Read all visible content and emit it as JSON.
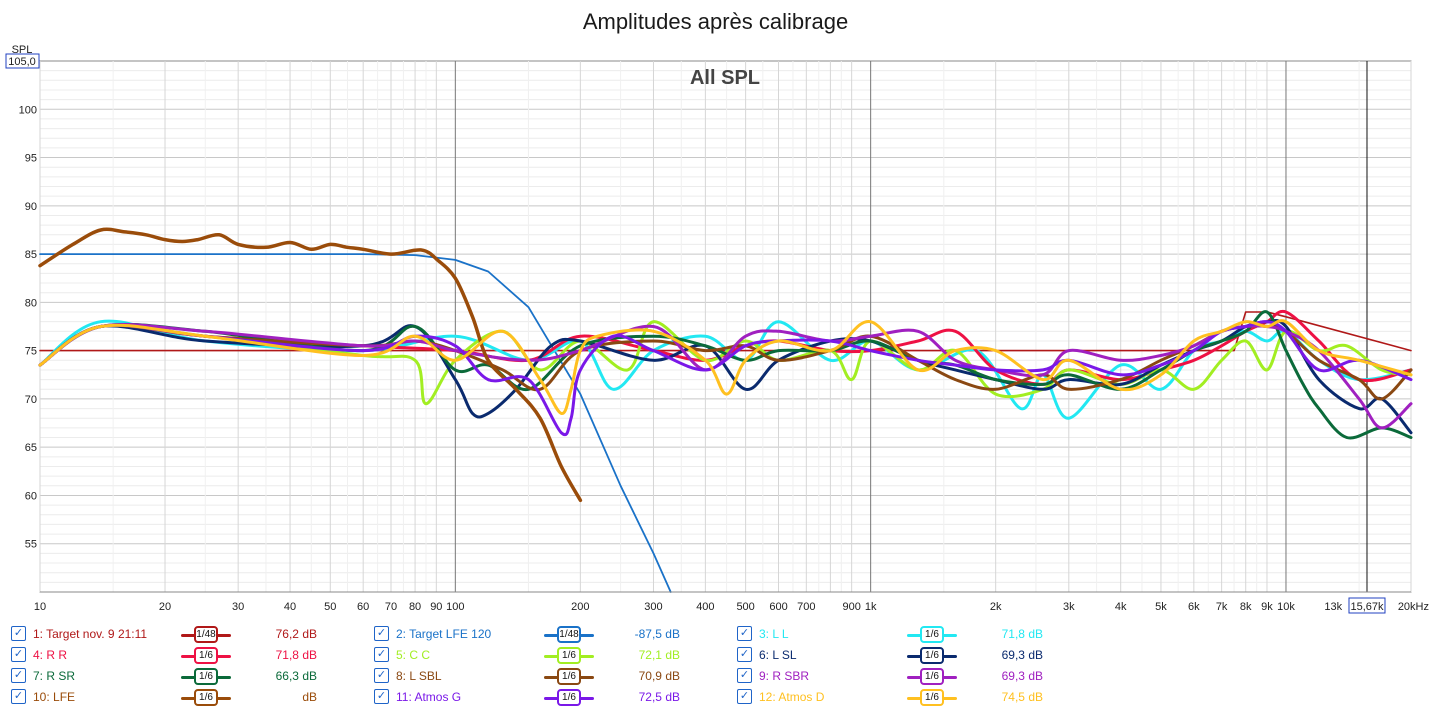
{
  "chart_data": {
    "type": "line",
    "title": "Amplitudes après calibrage",
    "annotation": "All SPL",
    "ylabel": "SPL",
    "ylim": [
      50,
      105
    ],
    "y_top_label": "105,0",
    "xlim_hz": [
      10,
      20000
    ],
    "x_scale": "log",
    "x_ticks": [
      {
        "hz": 10,
        "label": "10"
      },
      {
        "hz": 20,
        "label": "20"
      },
      {
        "hz": 30,
        "label": "30"
      },
      {
        "hz": 40,
        "label": "40"
      },
      {
        "hz": 50,
        "label": "50"
      },
      {
        "hz": 60,
        "label": "60"
      },
      {
        "hz": 70,
        "label": "70"
      },
      {
        "hz": 80,
        "label": "80"
      },
      {
        "hz": 90,
        "label": "90"
      },
      {
        "hz": 100,
        "label": "100"
      },
      {
        "hz": 200,
        "label": "200"
      },
      {
        "hz": 300,
        "label": "300"
      },
      {
        "hz": 400,
        "label": "400"
      },
      {
        "hz": 500,
        "label": "500"
      },
      {
        "hz": 600,
        "label": "600"
      },
      {
        "hz": 700,
        "label": "700"
      },
      {
        "hz": 900,
        "label": "900"
      },
      {
        "hz": 1000,
        "label": "1k"
      },
      {
        "hz": 2000,
        "label": "2k"
      },
      {
        "hz": 3000,
        "label": "3k"
      },
      {
        "hz": 4000,
        "label": "4k"
      },
      {
        "hz": 5000,
        "label": "5k"
      },
      {
        "hz": 6000,
        "label": "6k"
      },
      {
        "hz": 7000,
        "label": "7k"
      },
      {
        "hz": 8000,
        "label": "8k"
      },
      {
        "hz": 9000,
        "label": "9k"
      },
      {
        "hz": 10000,
        "label": "10k"
      },
      {
        "hz": 13000,
        "label": "13k"
      },
      {
        "hz": 20000,
        "label": "20kHz"
      }
    ],
    "y_ticks": [
      55,
      60,
      65,
      70,
      75,
      80,
      85,
      90,
      95,
      100
    ],
    "cursor": {
      "hz": 15670,
      "label": "15,67k"
    },
    "series": [
      {
        "name": "1: Target nov. 9 21:11",
        "color": "#b01818",
        "width": 1.6,
        "smoothing": "1/48",
        "legend_value": "76,2 dB",
        "x": [
          10,
          7500,
          8000,
          9000,
          10000,
          20000
        ],
        "y": [
          75,
          75,
          79,
          79,
          78.5,
          75
        ]
      },
      {
        "name": "2: Target LFE 120",
        "color": "#1a72c8",
        "width": 1.8,
        "smoothing": "1/48",
        "legend_value": "-87,5 dB",
        "x": [
          10,
          60,
          80,
          100,
          120,
          150,
          200,
          250,
          300,
          330
        ],
        "y": [
          85,
          85,
          84.9,
          84.4,
          83.2,
          79.5,
          70.5,
          61,
          54,
          50
        ]
      },
      {
        "name": "3: L L",
        "color": "#22e8f2",
        "width": 3,
        "smoothing": "1/6",
        "legend_value": "71,8 dB",
        "x": [
          10,
          14,
          25,
          60,
          100,
          150,
          200,
          240,
          300,
          400,
          500,
          600,
          800,
          1000,
          1300,
          1800,
          2300,
          2600,
          3000,
          4000,
          5000,
          6000,
          7000,
          8000,
          9000,
          10000,
          12000,
          15000,
          20000
        ],
        "y": [
          73.5,
          78,
          76,
          75,
          76.5,
          74,
          76,
          71,
          75,
          76.5,
          74,
          78,
          74,
          76,
          73,
          75,
          69,
          72.5,
          68,
          73.5,
          71,
          75,
          76,
          77,
          76,
          77,
          74,
          72,
          73
        ]
      },
      {
        "name": "4: R R",
        "color": "#ee1144",
        "width": 3,
        "smoothing": "1/6",
        "legend_value": "71,8 dB",
        "x": [
          10,
          14,
          25,
          60,
          100,
          150,
          200,
          300,
          400,
          500,
          600,
          800,
          1000,
          1300,
          1600,
          2000,
          2600,
          3000,
          4000,
          5000,
          6000,
          7000,
          8000,
          9000,
          10000,
          12000,
          15000,
          20000
        ],
        "y": [
          73.5,
          77.5,
          76.5,
          75.5,
          75,
          74,
          76.5,
          75,
          74,
          75.5,
          76,
          75,
          75,
          76,
          77,
          73,
          71.5,
          73,
          72,
          73,
          74,
          75.5,
          77,
          78,
          79,
          76,
          72,
          73
        ]
      },
      {
        "name": "5: C C",
        "color": "#a2ee22",
        "width": 3,
        "smoothing": "1/6",
        "legend_value": "72,1 dB",
        "x": [
          10,
          14,
          25,
          60,
          80,
          85,
          100,
          130,
          160,
          200,
          260,
          300,
          400,
          500,
          600,
          800,
          900,
          1000,
          1300,
          1600,
          2000,
          2600,
          3000,
          4000,
          5000,
          6000,
          7000,
          8000,
          9000,
          10000,
          12000,
          14000,
          17000,
          20000
        ],
        "y": [
          73.5,
          77.5,
          76.5,
          74.5,
          74,
          69.5,
          74,
          77,
          73,
          76,
          73,
          78,
          74,
          76,
          74,
          75,
          72,
          76,
          73,
          75,
          70.5,
          71,
          73,
          71.5,
          73,
          71,
          74,
          76,
          73,
          77,
          75,
          75.5,
          73,
          72.5
        ]
      },
      {
        "name": "6: L SL",
        "color": "#0a2a6e",
        "width": 3,
        "smoothing": "1/6",
        "legend_value": "69,3 dB",
        "x": [
          10,
          14,
          25,
          60,
          80,
          100,
          110,
          120,
          140,
          170,
          200,
          300,
          400,
          500,
          600,
          800,
          1000,
          1300,
          1600,
          2000,
          2600,
          3000,
          4000,
          5000,
          6000,
          7000,
          8000,
          9000,
          10000,
          12000,
          15000,
          17000,
          20000
        ],
        "y": [
          73.5,
          77.5,
          76,
          75.5,
          77.5,
          72,
          68.5,
          68.5,
          71,
          75.5,
          76,
          74,
          75.5,
          71,
          74,
          76,
          76,
          74,
          73,
          72,
          71,
          72,
          71.5,
          73.5,
          75,
          76,
          77.5,
          78,
          77.5,
          72,
          69,
          70,
          66.5
        ]
      },
      {
        "name": "7: R SR",
        "color": "#0b6a3a",
        "width": 3,
        "smoothing": "1/6",
        "legend_value": "66,3 dB",
        "x": [
          10,
          14,
          25,
          60,
          80,
          100,
          120,
          150,
          200,
          300,
          400,
          500,
          600,
          800,
          1000,
          1300,
          1600,
          2000,
          2600,
          3000,
          4000,
          5000,
          6000,
          7000,
          8000,
          9000,
          10000,
          11000,
          12000,
          14000,
          17000,
          20000
        ],
        "y": [
          73.5,
          77.5,
          77,
          75,
          77.5,
          73,
          73.5,
          71,
          75.5,
          76.5,
          75.5,
          74,
          75,
          75,
          76,
          74,
          73.5,
          72,
          71.5,
          72.5,
          71,
          73,
          75,
          76,
          77,
          79,
          75,
          71.5,
          69,
          66,
          67,
          66
        ]
      },
      {
        "name": "8: L SBL",
        "color": "#8a4812",
        "width": 3,
        "smoothing": "1/6",
        "legend_value": "70,9 dB",
        "x": [
          10,
          14,
          25,
          60,
          80,
          100,
          130,
          160,
          200,
          300,
          400,
          500,
          600,
          800,
          1000,
          1300,
          1600,
          2000,
          2600,
          3000,
          4000,
          5000,
          6000,
          7000,
          8000,
          9000,
          10000,
          12000,
          15000,
          17000,
          20000
        ],
        "y": [
          73.5,
          77.5,
          76.5,
          75.5,
          76,
          75,
          73,
          71,
          75,
          76,
          75,
          75.5,
          74,
          75,
          76.5,
          74,
          72,
          71,
          72.5,
          71,
          72,
          74,
          75.5,
          77,
          77.5,
          77.5,
          77,
          74,
          72,
          70,
          73
        ]
      },
      {
        "name": "9: R SBR",
        "color": "#a020c0",
        "width": 3,
        "smoothing": "1/6",
        "legend_value": "69,3 dB",
        "x": [
          10,
          14,
          25,
          60,
          80,
          100,
          150,
          200,
          300,
          400,
          500,
          600,
          800,
          1000,
          1300,
          1600,
          2000,
          2600,
          3000,
          4000,
          5000,
          6000,
          7000,
          8000,
          9000,
          10000,
          12000,
          15000,
          17000,
          20000
        ],
        "y": [
          73.5,
          77.5,
          77,
          75.5,
          76,
          75,
          74,
          75,
          77.5,
          73,
          76.5,
          77,
          76,
          76.5,
          77,
          74,
          73,
          72.5,
          75,
          74,
          74.5,
          75.5,
          77,
          77.5,
          77.5,
          77,
          75,
          70,
          67,
          69.5
        ]
      },
      {
        "name": "10: LFE",
        "color": "#9a4c0a",
        "width": 3.5,
        "smoothing": "1/6",
        "legend_value": "dB",
        "x": [
          10,
          12,
          14,
          16,
          18,
          20,
          22,
          24,
          27,
          30,
          35,
          40,
          45,
          50,
          55,
          60,
          70,
          80,
          85,
          90,
          100,
          110,
          120,
          140,
          160,
          180,
          200
        ],
        "y": [
          83.8,
          86,
          87.5,
          87.3,
          87,
          86.5,
          86.3,
          86.5,
          87,
          86,
          85.7,
          86.2,
          85.5,
          86,
          85.7,
          85.5,
          85,
          85.4,
          85.3,
          84.5,
          82.5,
          78.5,
          74,
          71,
          68,
          63,
          59.5
        ]
      },
      {
        "name": "11: Atmos G",
        "color": "#7a18e8",
        "width": 3,
        "smoothing": "1/6",
        "legend_value": "72,5 dB",
        "x": [
          10,
          14,
          25,
          60,
          80,
          100,
          120,
          150,
          180,
          190,
          200,
          240,
          300,
          400,
          500,
          600,
          800,
          1000,
          1300,
          1600,
          2000,
          2600,
          3000,
          4000,
          5000,
          6000,
          7000,
          8000,
          9000,
          10000,
          12000,
          15000,
          20000
        ],
        "y": [
          73.5,
          77.5,
          76.5,
          75,
          76.5,
          75.5,
          72,
          72,
          66.5,
          68,
          73,
          76.5,
          75,
          73,
          75.5,
          76,
          76,
          75,
          74,
          73.5,
          73,
          73,
          74,
          72.5,
          73.5,
          75,
          77,
          77.5,
          78,
          77,
          73,
          74,
          72
        ]
      },
      {
        "name": "12: Atmos D",
        "color": "#ffc020",
        "width": 3,
        "smoothing": "1/6",
        "legend_value": "74,5 dB",
        "x": [
          10,
          14,
          25,
          60,
          80,
          100,
          130,
          160,
          180,
          190,
          200,
          220,
          300,
          400,
          450,
          500,
          600,
          800,
          1000,
          1300,
          1600,
          2000,
          2600,
          3000,
          4000,
          5000,
          6000,
          7000,
          8000,
          9000,
          10000,
          12000,
          15000,
          20000
        ],
        "y": [
          73.5,
          77.5,
          76.5,
          74.5,
          76.5,
          74,
          77,
          72,
          68.5,
          71,
          75,
          76.5,
          77,
          74,
          70.5,
          74,
          76,
          75,
          78,
          73,
          75,
          75,
          72,
          74,
          71,
          72.5,
          76,
          77,
          78,
          77.5,
          78,
          75,
          74,
          72.5
        ]
      }
    ]
  }
}
